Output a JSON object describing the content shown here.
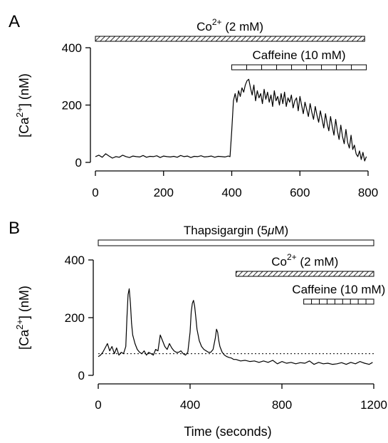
{
  "chart_data": [
    {
      "type": "line",
      "panel_label": "A",
      "ylabel": "[Ca2+] (nM)",
      "ylabel_parts": {
        "pre": "[Ca",
        "sup": "2+",
        "post": "] (nM)"
      },
      "xlim": [
        0,
        800
      ],
      "ylim": [
        0,
        400
      ],
      "x_ticks": [
        0,
        200,
        400,
        600,
        800
      ],
      "y_ticks": [
        0,
        200,
        400
      ],
      "bars": [
        {
          "label_pre": "Co",
          "label_sup": "2+",
          "label_post": " (2 mM)",
          "start": 0,
          "end": 790,
          "style": "hatched"
        },
        {
          "label_pre": "Caffeine (10 mM)",
          "label_sup": "",
          "label_post": "",
          "start": 400,
          "end": 795,
          "style": "segmented"
        }
      ],
      "series": [
        {
          "x": [
            0,
            10,
            20,
            30,
            40,
            50,
            60,
            70,
            80,
            90,
            100,
            110,
            120,
            130,
            140,
            150,
            160,
            170,
            180,
            190,
            200,
            210,
            220,
            230,
            240,
            250,
            260,
            270,
            280,
            290,
            300,
            310,
            320,
            330,
            340,
            350,
            360,
            370,
            380,
            390,
            395,
            400,
            405,
            410,
            415,
            420,
            425,
            430,
            435,
            440,
            445,
            450,
            455,
            460,
            465,
            470,
            475,
            480,
            485,
            490,
            495,
            500,
            505,
            510,
            515,
            520,
            525,
            530,
            535,
            540,
            545,
            550,
            555,
            560,
            565,
            570,
            575,
            580,
            585,
            590,
            595,
            600,
            605,
            610,
            615,
            620,
            625,
            630,
            635,
            640,
            645,
            650,
            655,
            660,
            665,
            670,
            675,
            680,
            685,
            690,
            695,
            700,
            705,
            710,
            715,
            720,
            725,
            730,
            735,
            740,
            745,
            750,
            755,
            760,
            765,
            770,
            775,
            780,
            785,
            790,
            795
          ],
          "y": [
            20,
            25,
            18,
            30,
            22,
            15,
            20,
            18,
            25,
            20,
            17,
            22,
            20,
            19,
            24,
            18,
            21,
            20,
            23,
            17,
            22,
            20,
            19,
            21,
            18,
            24,
            20,
            22,
            17,
            21,
            20,
            23,
            19,
            20,
            22,
            18,
            21,
            20,
            19,
            22,
            20,
            110,
            215,
            240,
            210,
            250,
            230,
            260,
            245,
            270,
            285,
            290,
            260,
            235,
            270,
            215,
            250,
            225,
            240,
            205,
            255,
            220,
            245,
            210,
            235,
            195,
            250,
            215,
            230,
            200,
            240,
            205,
            245,
            195,
            225,
            210,
            235,
            190,
            215,
            225,
            180,
            230,
            200,
            170,
            210,
            185,
            160,
            205,
            175,
            150,
            195,
            165,
            140,
            180,
            150,
            120,
            170,
            135,
            110,
            160,
            125,
            95,
            150,
            110,
            80,
            130,
            90,
            65,
            115,
            70,
            50,
            95,
            45,
            60,
            30,
            20,
            40,
            10,
            35,
            5,
            20
          ]
        }
      ]
    },
    {
      "type": "line",
      "panel_label": "B",
      "ylabel": "[Ca2+] (nM)",
      "ylabel_parts": {
        "pre": "[Ca",
        "sup": "2+",
        "post": "] (nM)"
      },
      "xlabel": "Time (seconds)",
      "xlim": [
        0,
        1200
      ],
      "ylim": [
        0,
        400
      ],
      "x_ticks": [
        0,
        400,
        800,
        1200
      ],
      "y_ticks": [
        0,
        200,
        400
      ],
      "baseline_y": 75,
      "bars": [
        {
          "label_pre": "Thapsigargin (5",
          "label_sup": "",
          "label_post": "",
          "label_mu": "μM)",
          "start": 0,
          "end": 1200,
          "style": "open"
        },
        {
          "label_pre": "Co",
          "label_sup": "2+",
          "label_post": " (2 mM)",
          "start": 600,
          "end": 1200,
          "style": "hatched"
        },
        {
          "label_pre": "Caffeine (10 mM)",
          "label_sup": "",
          "label_post": "",
          "start": 895,
          "end": 1200,
          "style": "segmented"
        }
      ],
      "series": [
        {
          "x": [
            0,
            10,
            20,
            30,
            40,
            50,
            60,
            70,
            80,
            90,
            100,
            110,
            120,
            125,
            130,
            135,
            140,
            145,
            150,
            160,
            170,
            180,
            190,
            200,
            210,
            220,
            230,
            240,
            250,
            260,
            270,
            280,
            290,
            300,
            310,
            320,
            330,
            340,
            350,
            360,
            370,
            380,
            390,
            400,
            405,
            410,
            415,
            420,
            425,
            430,
            440,
            450,
            460,
            470,
            480,
            490,
            500,
            510,
            515,
            520,
            525,
            530,
            535,
            540,
            550,
            560,
            570,
            580,
            590,
            600,
            620,
            640,
            660,
            680,
            700,
            720,
            740,
            760,
            780,
            800,
            820,
            840,
            860,
            880,
            900,
            920,
            940,
            960,
            980,
            1000,
            1020,
            1040,
            1060,
            1080,
            1100,
            1120,
            1140,
            1160,
            1180,
            1195
          ],
          "y": [
            65,
            70,
            80,
            95,
            110,
            85,
            100,
            75,
            95,
            70,
            80,
            75,
            100,
            200,
            280,
            300,
            250,
            180,
            140,
            110,
            90,
            80,
            75,
            85,
            70,
            80,
            75,
            70,
            90,
            85,
            140,
            120,
            100,
            90,
            110,
            95,
            85,
            80,
            80,
            85,
            75,
            70,
            80,
            150,
            220,
            250,
            260,
            240,
            200,
            160,
            120,
            100,
            90,
            85,
            80,
            80,
            90,
            130,
            160,
            150,
            120,
            100,
            90,
            80,
            70,
            65,
            62,
            60,
            55,
            55,
            50,
            52,
            48,
            50,
            45,
            50,
            45,
            52,
            40,
            48,
            42,
            45,
            40,
            44,
            42,
            50,
            38,
            45,
            40,
            42,
            38,
            40,
            44,
            38,
            45,
            40,
            48,
            42,
            38,
            45
          ]
        }
      ]
    }
  ]
}
